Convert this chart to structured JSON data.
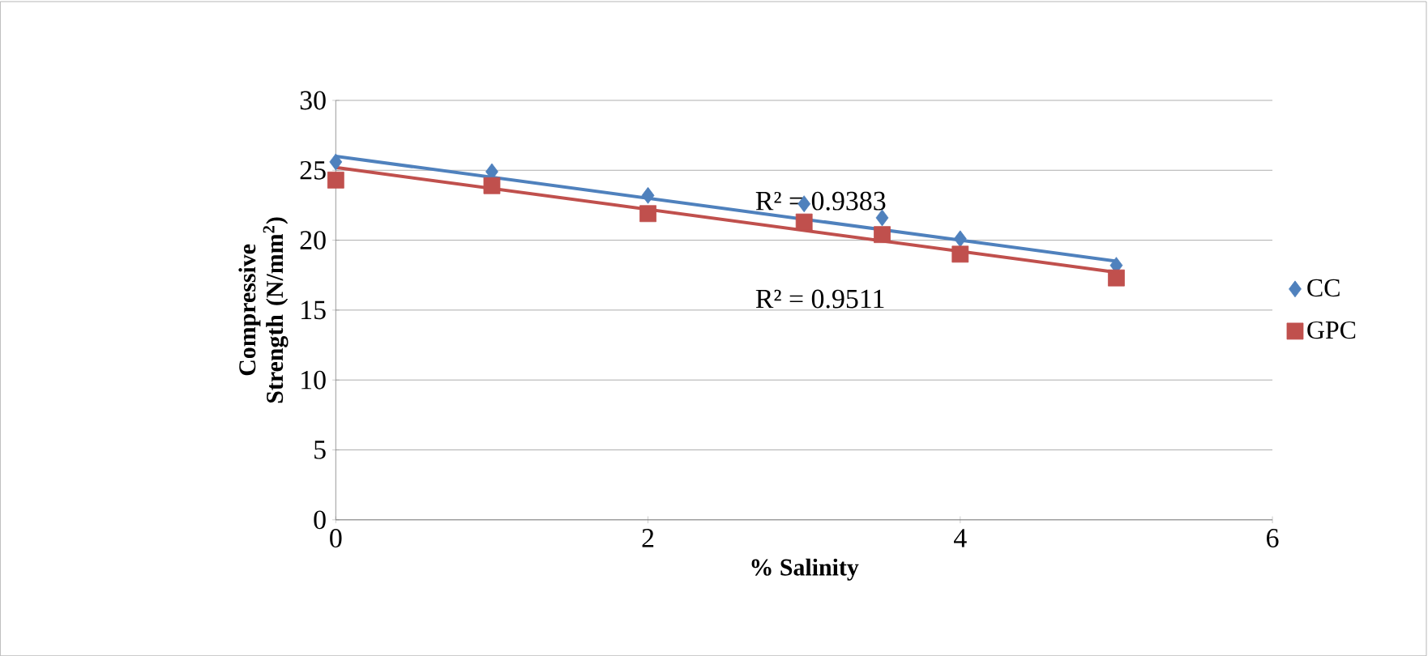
{
  "chart_data": {
    "type": "scatter",
    "xlabel": "% Salinity",
    "ylabel": "Compressive Strength (N/mm$^{2}$)",
    "xlim": [
      0,
      6
    ],
    "ylim": [
      0,
      30
    ],
    "xticks": [
      0,
      2,
      4,
      6
    ],
    "yticks": [
      0,
      5,
      10,
      15,
      20,
      25,
      30
    ],
    "grid": "y",
    "legend": "right",
    "series": [
      {
        "name": "CC",
        "color": "#4f81bd",
        "marker": "diamond",
        "x": [
          0,
          1,
          2,
          3,
          3.5,
          4,
          5
        ],
        "values": [
          25.6,
          24.9,
          23.2,
          22.6,
          21.6,
          20.1,
          18.2
        ]
      },
      {
        "name": "GPC",
        "color": "#c0504d",
        "marker": "square",
        "x": [
          0,
          1,
          2,
          3,
          3.5,
          4,
          5
        ],
        "values": [
          24.3,
          23.9,
          21.9,
          21.3,
          20.4,
          19.0,
          17.3
        ]
      },
      {
        "type": "line",
        "color": "#4f81bd",
        "marker": "none",
        "x": [
          0,
          5
        ],
        "values": [
          26.0,
          18.5
        ]
      },
      {
        "type": "line",
        "color": "#c0504d",
        "marker": "none",
        "x": [
          0,
          5
        ],
        "values": [
          25.2,
          17.7
        ]
      }
    ],
    "annotations": [
      "R² = 0.9383",
      "R² = 0.9511"
    ]
  }
}
